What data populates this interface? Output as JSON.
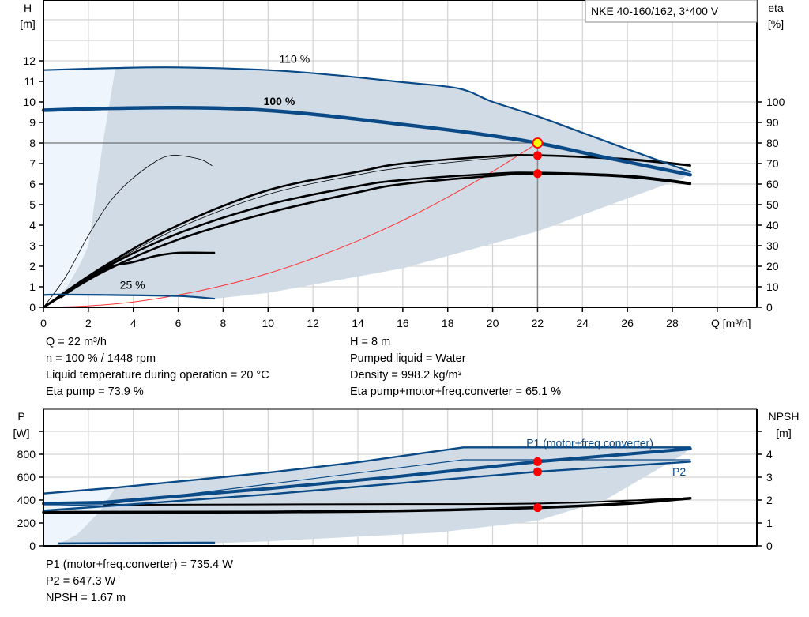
{
  "colors": {
    "blue": "#0a4a86",
    "shade": "#d0dbe6",
    "light_shade": "#eef5fc",
    "operating_point": "#ffff00",
    "marker": "#ff0000",
    "system_curve": "#ff3333",
    "grid": "#d3d3d3"
  },
  "chart_data": [
    {
      "type": "line",
      "title": "NKE 40-160/162, 3*400 V",
      "xlabel": "Q [m³/h]",
      "ylabel_left": [
        "H",
        "[m]"
      ],
      "ylabel_right": [
        "eta",
        "[%]"
      ],
      "xlim": [
        0,
        31.5
      ],
      "ylim_left": [
        0,
        14.9
      ],
      "ylim_right": [
        0,
        149
      ],
      "x_ticks": [
        0,
        2,
        4,
        6,
        8,
        10,
        12,
        14,
        16,
        18,
        20,
        22,
        24,
        26,
        28
      ],
      "y_left_ticks": [
        0,
        1,
        2,
        3,
        4,
        5,
        6,
        7,
        8,
        9,
        10,
        11,
        12
      ],
      "y_right_ticks": [
        0,
        10,
        20,
        30,
        40,
        50,
        60,
        70,
        80,
        90,
        100
      ],
      "grid": true,
      "curve_labels": [
        {
          "text": "110 %",
          "q": 10.5,
          "h": 11.9
        },
        {
          "text": "100 %",
          "q": 9.8,
          "h": 9.85
        },
        {
          "text": "25 %",
          "q": 3.4,
          "h": 0.9
        }
      ],
      "head_curves": [
        {
          "label": "110 %",
          "points": [
            [
              0,
              11.55
            ],
            [
              3.2,
              11.65
            ],
            [
              6,
              11.68
            ],
            [
              10,
              11.55
            ],
            [
              13,
              11.3
            ],
            [
              16,
              10.96
            ],
            [
              18.5,
              10.65
            ],
            [
              20,
              10.0
            ],
            [
              22,
              9.3
            ],
            [
              24,
              8.5
            ],
            [
              26,
              7.7
            ],
            [
              28.8,
              6.6
            ]
          ]
        },
        {
          "label": "100 %",
          "points": [
            [
              0,
              9.6
            ],
            [
              2.7,
              9.68
            ],
            [
              6,
              9.72
            ],
            [
              9,
              9.65
            ],
            [
              12,
              9.4
            ],
            [
              16,
              8.9
            ],
            [
              19,
              8.5
            ],
            [
              22,
              8.0
            ],
            [
              25,
              7.3
            ],
            [
              28.8,
              6.45
            ]
          ]
        },
        {
          "label": "25 %",
          "points": [
            [
              0,
              0.6
            ],
            [
              0.7,
              0.62
            ],
            [
              3,
              0.6
            ],
            [
              6,
              0.55
            ],
            [
              7.6,
              0.42
            ]
          ]
        }
      ],
      "eta_curves": [
        {
          "points": [
            [
              0,
              0
            ],
            [
              2.7,
              20
            ],
            [
              6,
              40
            ],
            [
              10,
              57
            ],
            [
              14,
              66
            ],
            [
              16,
              70
            ],
            [
              20,
              73.5
            ],
            [
              22,
              74
            ],
            [
              26,
              72
            ],
            [
              28.8,
              69
            ]
          ]
        },
        {
          "points": [
            [
              0,
              0
            ],
            [
              2.7,
              19.3
            ],
            [
              6,
              38.5
            ],
            [
              10,
              55
            ],
            [
              14,
              64.5
            ],
            [
              16,
              68
            ],
            [
              20,
              72.5
            ],
            [
              22,
              73.9
            ],
            [
              26,
              72.5
            ],
            [
              28.8,
              69.5
            ]
          ],
          "thin": true
        },
        {
          "points": [
            [
              0,
              0
            ],
            [
              2.7,
              19
            ],
            [
              6,
              36
            ],
            [
              10,
              50
            ],
            [
              14,
              59
            ],
            [
              16,
              62
            ],
            [
              20,
              65
            ],
            [
              22,
              65.5
            ],
            [
              26,
              64
            ],
            [
              28.8,
              60.5
            ]
          ]
        },
        {
          "points": [
            [
              0,
              0
            ],
            [
              2.7,
              17.5
            ],
            [
              6,
              33
            ],
            [
              10,
              46
            ],
            [
              14,
              56
            ],
            [
              16,
              60
            ],
            [
              20,
              64
            ],
            [
              22,
              65.1
            ],
            [
              26,
              63.5
            ],
            [
              28.8,
              60
            ]
          ]
        },
        {
          "points": [
            [
              0,
              0
            ],
            [
              1,
              15
            ],
            [
              2,
              35
            ],
            [
              3,
              52
            ],
            [
              4,
              63
            ],
            [
              5,
              71
            ],
            [
              5.5,
              73.5
            ],
            [
              6,
              74
            ],
            [
              7,
              72
            ],
            [
              7.5,
              69
            ]
          ],
          "thin": true
        },
        {
          "points": [
            [
              0.8,
              5
            ],
            [
              2.7,
              18.5
            ],
            [
              4,
              22
            ],
            [
              5,
              25
            ],
            [
              6,
              26.5
            ],
            [
              7.6,
              26.5
            ]
          ]
        }
      ],
      "system_curve": {
        "points": [
          [
            0,
            0
          ],
          [
            2,
            0.07
          ],
          [
            4,
            0.26
          ],
          [
            6,
            0.6
          ],
          [
            8,
            1.06
          ],
          [
            10,
            1.65
          ],
          [
            12,
            2.38
          ],
          [
            14,
            3.24
          ],
          [
            16,
            4.23
          ],
          [
            18,
            5.36
          ],
          [
            20,
            6.61
          ],
          [
            22,
            8.0
          ]
        ]
      },
      "operating_point": {
        "q": 22,
        "h": 8,
        "eta_pump": 73.9,
        "eta_total": 65.1
      }
    },
    {
      "type": "line",
      "ylabel_left": [
        "P",
        "[W]"
      ],
      "ylabel_right": [
        "NPSH",
        "[m]"
      ],
      "xlim": [
        0,
        31.5
      ],
      "ylim_left": [
        0,
        1190
      ],
      "ylim_right": [
        0,
        5.95
      ],
      "x_ticks": [
        0,
        2,
        4,
        6,
        8,
        10,
        12,
        14,
        16,
        18,
        20,
        22,
        24,
        26,
        28
      ],
      "y_left_ticks": [
        0,
        200,
        400,
        600,
        800
      ],
      "y_right_ticks": [
        0,
        1,
        2,
        3,
        4
      ],
      "grid": true,
      "series_labels": [
        {
          "text": "P1 (motor+freq.converter)",
          "q": 21.5,
          "p": 900
        },
        {
          "text": "P2",
          "q": 28,
          "p": 650
        }
      ],
      "power_curves": [
        {
          "label": "P1 (motor+freq.converter) 110 %",
          "points": [
            [
              0,
              457
            ],
            [
              3.2,
              508
            ],
            [
              10,
              640
            ],
            [
              14,
              730
            ],
            [
              18.7,
              860
            ],
            [
              28.8,
              860
            ]
          ]
        },
        {
          "label": "P1 (motor+freq.converter)",
          "points": [
            [
              0,
              370
            ],
            [
              2.7,
              380
            ],
            [
              10,
              500
            ],
            [
              16,
              610
            ],
            [
              22,
              735.4
            ],
            [
              28.8,
              848
            ]
          ],
          "thick": true
        },
        {
          "label": "P2",
          "points": [
            [
              0,
              308
            ],
            [
              2.7,
              345
            ],
            [
              10,
              450
            ],
            [
              16,
              550
            ],
            [
              22,
              647.3
            ],
            [
              28.8,
              735
            ]
          ]
        },
        {
          "label": "P2 110 %",
          "points": [
            [
              0,
              350
            ],
            [
              2.7,
              360
            ],
            [
              18.7,
              752
            ],
            [
              28.8,
              752
            ]
          ],
          "thin": true
        },
        {
          "label": "25 %",
          "points": [
            [
              0.7,
              22
            ],
            [
              7.6,
              28
            ]
          ]
        }
      ],
      "npsh_curves": [
        {
          "points": [
            [
              0,
              1.47
            ],
            [
              2.7,
              1.47
            ],
            [
              10,
              1.48
            ],
            [
              16,
              1.53
            ],
            [
              22,
              1.67
            ],
            [
              26,
              1.85
            ],
            [
              28.8,
              2.08
            ]
          ],
          "thick": true
        },
        {
          "points": [
            [
              2.7,
              1.79
            ],
            [
              14,
              1.82
            ],
            [
              22,
              1.85
            ],
            [
              28.8,
              2.08
            ]
          ]
        },
        {
          "points": [
            [
              0.7,
              0.1
            ],
            [
              7.6,
              0.13
            ]
          ]
        }
      ],
      "operating_point": {
        "q": 22,
        "p1": 735.4,
        "p2": 647.3,
        "npsh": 1.67
      }
    }
  ],
  "info_top": {
    "left": [
      "Q = 22 m³/h",
      "n = 100 % / 1448 rpm",
      "Liquid temperature during operation = 20 °C",
      "Eta pump = 73.9 %"
    ],
    "right": [
      "H = 8 m",
      "Pumped liquid = Water",
      "Density = 998.2 kg/m³",
      "Eta pump+motor+freq.converter = 65.1 %"
    ]
  },
  "info_bottom": [
    "P1 (motor+freq.converter) = 735.4 W",
    "P2 = 647.3 W",
    "NPSH = 1.67 m"
  ]
}
